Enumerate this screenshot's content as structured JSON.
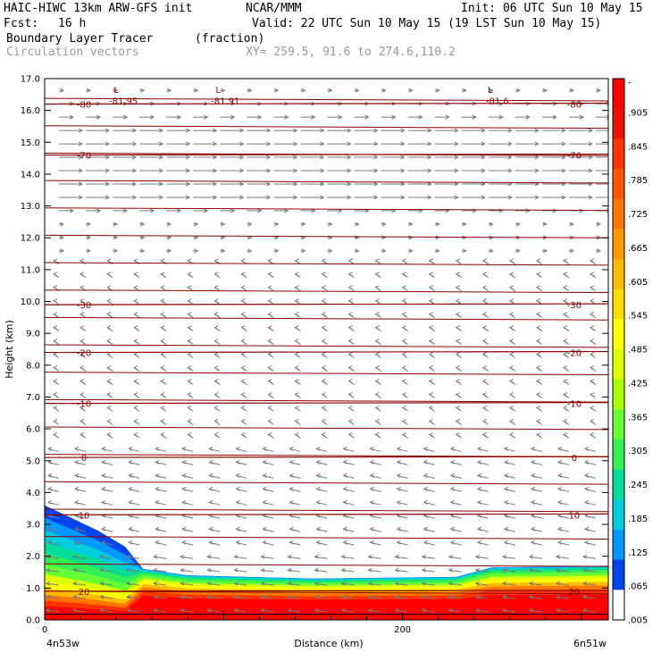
{
  "header": {
    "model": "HAIC-HIWC 13km ARW-GFS init",
    "org": "NCAR/MMM",
    "init": "Init: 06 UTC Sun 10 May 15",
    "fcst_label": "Fcst:",
    "fcst_value": "16 h",
    "valid": "Valid: 22 UTC Sun 10 May 15 (19 LST Sun 10 May 15)",
    "field": "Boundary Layer Tracer",
    "field_unit": "(fraction)",
    "vectors": "Circulation vectors",
    "xy": "XY= 259.5, 91.6 to 274.6,110.2"
  },
  "chart_data": {
    "type": "heatmap",
    "title": "Boundary Layer Tracer (fraction)",
    "xlabel": "Distance (km)",
    "ylabel": "Height (km)",
    "xlim": [
      0,
      315
    ],
    "ylim": [
      0,
      17.0
    ],
    "x_ticks": [
      0,
      200
    ],
    "y_ticks": [
      "0.0",
      "1.0",
      "2.0",
      "3.0",
      "4.0",
      "5.0",
      "6.0",
      "7.0",
      "8.0",
      "9.0",
      "10.0",
      "11.0",
      "12.0",
      "13.0",
      "14.0",
      "15.0",
      "16.0",
      "17.0"
    ],
    "left_label": "4n53w",
    "right_label": "6n51w",
    "colorbar": {
      "labels": [
        "-",
        ".905",
        ".845",
        ".785",
        ".725",
        ".665",
        ".605",
        ".545",
        ".485",
        ".425",
        ".365",
        ".305",
        ".245",
        ".185",
        ".125",
        ".065",
        ".005"
      ],
      "colors": [
        "#ff0000",
        "#ee1100",
        "#ff3300",
        "#ff5500",
        "#ff7700",
        "#ff9900",
        "#ffbb00",
        "#ffdd00",
        "#ffff00",
        "#ddff00",
        "#aaff00",
        "#66ff33",
        "#33ee55",
        "#00dd99",
        "#00ccdd",
        "#0099ff",
        "#0044ee",
        "#ffffff"
      ]
    },
    "boundary_layer_top_km": [
      {
        "x": 0,
        "y": 3.6
      },
      {
        "x": 15,
        "y": 3.2
      },
      {
        "x": 30,
        "y": 2.8
      },
      {
        "x": 45,
        "y": 2.3
      },
      {
        "x": 55,
        "y": 1.6
      },
      {
        "x": 80,
        "y": 1.4
      },
      {
        "x": 150,
        "y": 1.3
      },
      {
        "x": 230,
        "y": 1.35
      },
      {
        "x": 250,
        "y": 1.65
      },
      {
        "x": 315,
        "y": 1.7
      }
    ],
    "isotherms": [
      {
        "label": "-80",
        "y": 16.2
      },
      {
        "label": "-70",
        "y": 14.6
      },
      {
        "label": "-30",
        "y": 9.9
      },
      {
        "label": "-20",
        "y": 8.4
      },
      {
        "label": "-10",
        "y": 6.8
      },
      {
        "label": "0",
        "y": 5.1
      },
      {
        "label": "10",
        "y": 3.3
      },
      {
        "label": "20",
        "y": 0.9
      }
    ],
    "minima": [
      {
        "x": 43,
        "label": "-81.95"
      },
      {
        "x": 100,
        "label": "-81.91"
      },
      {
        "x": 252,
        "label": "-81.6"
      }
    ]
  }
}
